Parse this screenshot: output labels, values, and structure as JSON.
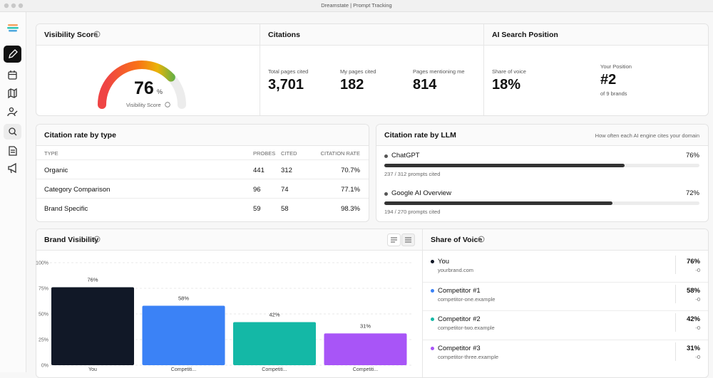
{
  "window": {
    "title": "Dreamstate | Prompt Tracking"
  },
  "visibility": {
    "title": "Visibility Score",
    "score": 76,
    "unit": "%",
    "caption": "Visibility Score"
  },
  "citations": {
    "title": "Citations",
    "metrics": [
      {
        "label": "Total pages cited",
        "value": "3,701"
      },
      {
        "label": "My pages cited",
        "value": "182"
      },
      {
        "label": "Pages mentioning me",
        "value": "814"
      }
    ]
  },
  "ai_search": {
    "title": "AI Search Position",
    "share_label": "Share of voice",
    "share_value": "18%",
    "position_label": "Your Position",
    "position_value": "#2",
    "position_note": "of 9 brands"
  },
  "citation_type": {
    "title": "Citation rate by type",
    "columns": [
      "TYPE",
      "PROBES",
      "CITED",
      "CITATION RATE"
    ],
    "rows": [
      [
        "Organic",
        "441",
        "312",
        "70.7%"
      ],
      [
        "Category Comparison",
        "96",
        "74",
        "77.1%"
      ],
      [
        "Brand Specific",
        "59",
        "58",
        "98.3%"
      ]
    ]
  },
  "citation_llm": {
    "title": "Citation rate by LLM",
    "subtitle": "How often each AI engine cites your domain",
    "items": [
      {
        "name": "ChatGPT",
        "value": 76,
        "value_label": "76%",
        "detail": "237 / 312 prompts cited"
      },
      {
        "name": "Google AI Overview",
        "value": 72,
        "value_label": "72%",
        "detail": "194 / 270 prompts cited"
      }
    ]
  },
  "brand_visibility": {
    "title": "Brand Visibility",
    "chart": {
      "type": "bar",
      "categories": [
        "You",
        "Competiti...",
        "Competiti...",
        "Competiti..."
      ],
      "values": [
        76,
        58,
        42,
        31
      ],
      "value_labels": [
        "76%",
        "58%",
        "42%",
        "31%"
      ],
      "colors": [
        "#111827",
        "#3b82f6",
        "#14b8a6",
        "#a855f7"
      ],
      "ylim": [
        0,
        100
      ],
      "yticks": [
        {
          "value": 0,
          "label": "0%"
        },
        {
          "value": 25,
          "label": "25%"
        },
        {
          "value": 50,
          "label": "50%"
        },
        {
          "value": 75,
          "label": "75%"
        },
        {
          "value": 100,
          "label": "100%"
        }
      ],
      "grid": true
    }
  },
  "share_of_voice": {
    "title": "Share of Voice",
    "items": [
      {
        "name": "You",
        "domain": "yourbrand.com",
        "value": "76%",
        "change": "-0",
        "color": "#111827"
      },
      {
        "name": "Competitor #1",
        "domain": "competitor-one.example",
        "value": "58%",
        "change": "-0",
        "color": "#3b82f6"
      },
      {
        "name": "Competitor #2",
        "domain": "competitor-two.example",
        "value": "42%",
        "change": "-0",
        "color": "#14b8a6"
      },
      {
        "name": "Competitor #3",
        "domain": "competitor-three.example",
        "value": "31%",
        "change": "-0",
        "color": "#a855f7"
      }
    ]
  }
}
